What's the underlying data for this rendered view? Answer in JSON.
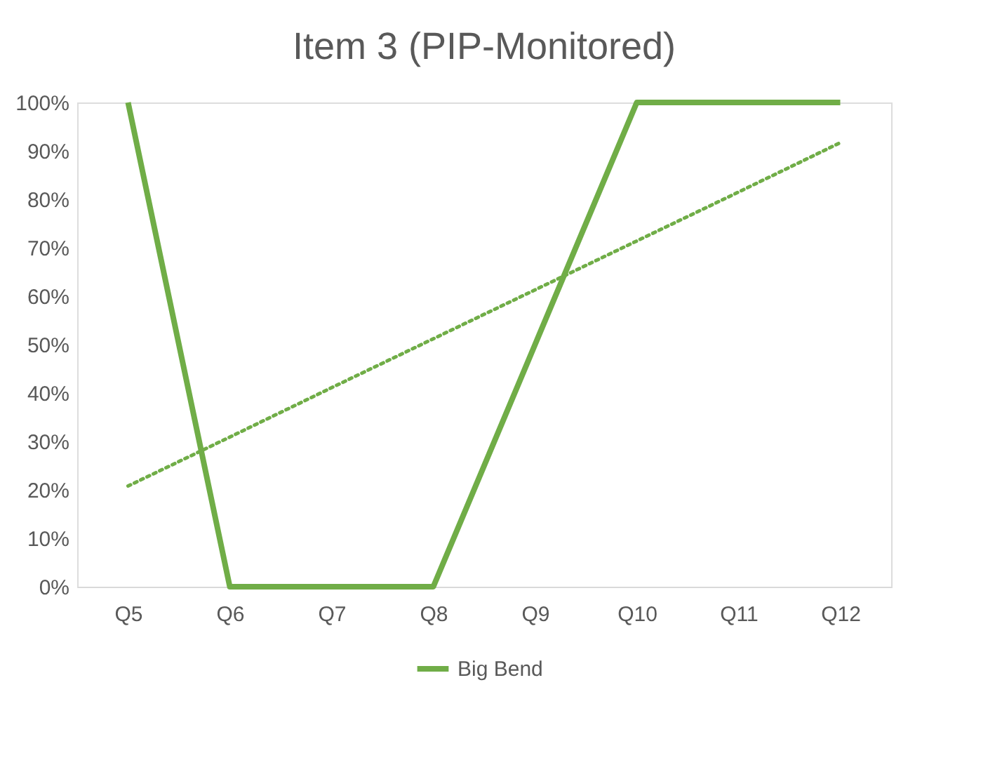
{
  "chart_data": {
    "type": "line",
    "title": "Item 3 (PIP-Monitored)",
    "categories": [
      "Q5",
      "Q6",
      "Q7",
      "Q8",
      "Q9",
      "Q10",
      "Q11",
      "Q12"
    ],
    "series": [
      {
        "name": "Big Bend",
        "color": "#70ad47",
        "values": [
          100,
          0,
          0,
          0,
          50,
          100,
          100,
          100
        ]
      },
      {
        "type": "line",
        "line_style": "dotted",
        "color": "#70ad47",
        "values": [
          20.8,
          30.9,
          41.1,
          51.2,
          61.3,
          71.4,
          81.5,
          91.7
        ]
      }
    ],
    "ylim": [
      0,
      100
    ],
    "yticks": [
      {
        "value": 0,
        "label": "0%"
      },
      {
        "value": 10,
        "label": "10%"
      },
      {
        "value": 20,
        "label": "20%"
      },
      {
        "value": 30,
        "label": "30%"
      },
      {
        "value": 40,
        "label": "40%"
      },
      {
        "value": 50,
        "label": "50%"
      },
      {
        "value": 60,
        "label": "60%"
      },
      {
        "value": 70,
        "label": "70%"
      },
      {
        "value": 80,
        "label": "80%"
      },
      {
        "value": 90,
        "label": "90%"
      },
      {
        "value": 100,
        "label": "100%"
      }
    ],
    "grid": false,
    "legend": "bottom",
    "marker": "none",
    "line_style": "solid"
  }
}
